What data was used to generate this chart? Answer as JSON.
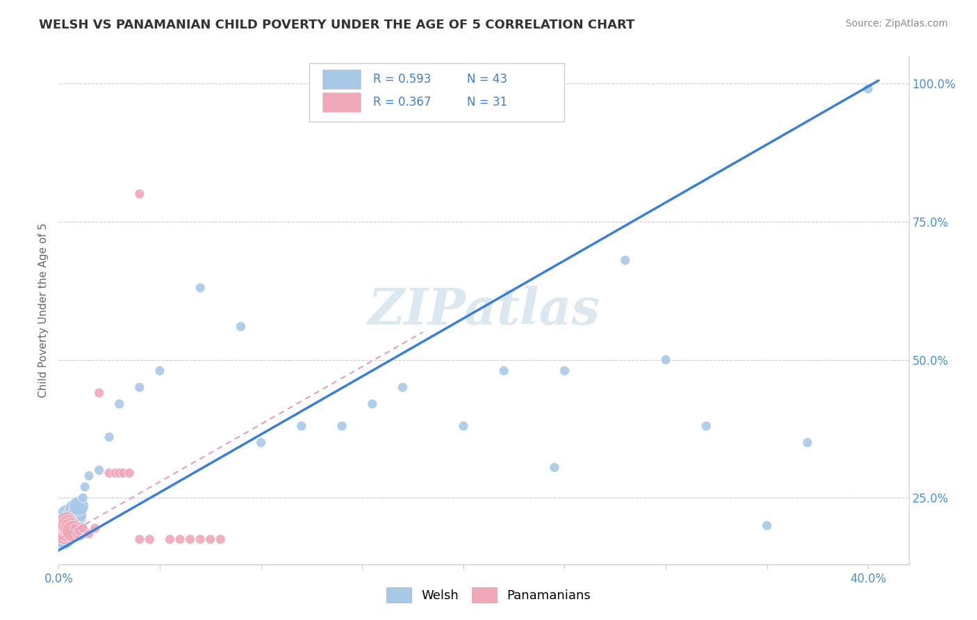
{
  "title": "WELSH VS PANAMANIAN CHILD POVERTY UNDER THE AGE OF 5 CORRELATION CHART",
  "source": "Source: ZipAtlas.com",
  "ylabel": "Child Poverty Under the Age of 5",
  "xlim": [
    0.0,
    0.42
  ],
  "ylim": [
    0.13,
    1.05
  ],
  "xtick_positions": [
    0.0,
    0.05,
    0.1,
    0.15,
    0.2,
    0.25,
    0.3,
    0.35,
    0.4
  ],
  "xticklabels": [
    "0.0%",
    "",
    "",
    "",
    "",
    "",
    "",
    "",
    "40.0%"
  ],
  "yticks_right": [
    0.25,
    0.5,
    0.75,
    1.0
  ],
  "ytick_labels_right": [
    "25.0%",
    "50.0%",
    "75.0%",
    "100.0%"
  ],
  "welsh_R": "0.593",
  "welsh_N": "43",
  "panama_R": "0.367",
  "panama_N": "31",
  "welsh_color": "#a8c8e8",
  "panama_color": "#f0a8b8",
  "welsh_line_color": "#3a7fd5",
  "panama_line_color": "#e8a0b0",
  "watermark_color": "#dce8f0",
  "welsh_x": [
    0.001,
    0.002,
    0.003,
    0.003,
    0.004,
    0.004,
    0.005,
    0.005,
    0.006,
    0.006,
    0.007,
    0.007,
    0.008,
    0.008,
    0.009,
    0.009,
    0.01,
    0.01,
    0.012,
    0.013,
    0.015,
    0.02,
    0.025,
    0.03,
    0.04,
    0.05,
    0.07,
    0.09,
    0.1,
    0.12,
    0.14,
    0.155,
    0.17,
    0.2,
    0.22,
    0.25,
    0.28,
    0.3,
    0.32,
    0.35,
    0.245,
    0.37,
    0.4
  ],
  "welsh_y": [
    0.175,
    0.19,
    0.2,
    0.175,
    0.21,
    0.22,
    0.185,
    0.2,
    0.19,
    0.21,
    0.195,
    0.22,
    0.2,
    0.23,
    0.215,
    0.22,
    0.19,
    0.235,
    0.25,
    0.27,
    0.29,
    0.3,
    0.36,
    0.42,
    0.45,
    0.48,
    0.63,
    0.56,
    0.35,
    0.38,
    0.38,
    0.42,
    0.45,
    0.38,
    0.48,
    0.48,
    0.68,
    0.5,
    0.38,
    0.2,
    0.305,
    0.35,
    0.99
  ],
  "welsh_sizes": [
    400,
    400,
    400,
    400,
    400,
    400,
    400,
    400,
    400,
    400,
    400,
    400,
    400,
    400,
    400,
    400,
    400,
    400,
    100,
    100,
    100,
    100,
    100,
    100,
    100,
    100,
    100,
    100,
    100,
    100,
    100,
    100,
    100,
    100,
    100,
    100,
    100,
    100,
    100,
    100,
    100,
    100,
    100
  ],
  "panama_x": [
    0.001,
    0.002,
    0.003,
    0.003,
    0.004,
    0.004,
    0.005,
    0.005,
    0.006,
    0.007,
    0.008,
    0.009,
    0.01,
    0.012,
    0.015,
    0.018,
    0.02,
    0.025,
    0.028,
    0.03,
    0.032,
    0.035,
    0.04,
    0.045,
    0.055,
    0.06,
    0.065,
    0.07,
    0.075,
    0.08,
    0.04
  ],
  "panama_y": [
    0.195,
    0.19,
    0.195,
    0.185,
    0.205,
    0.19,
    0.195,
    0.2,
    0.195,
    0.19,
    0.195,
    0.185,
    0.19,
    0.195,
    0.185,
    0.195,
    0.44,
    0.295,
    0.295,
    0.295,
    0.295,
    0.295,
    0.175,
    0.175,
    0.175,
    0.175,
    0.175,
    0.175,
    0.175,
    0.175,
    0.8
  ],
  "panama_sizes": [
    500,
    500,
    500,
    500,
    500,
    500,
    500,
    500,
    500,
    500,
    100,
    100,
    100,
    100,
    100,
    100,
    100,
    100,
    100,
    100,
    100,
    100,
    100,
    100,
    100,
    100,
    100,
    100,
    100,
    100,
    100
  ],
  "welsh_line_x": [
    0.0,
    0.405
  ],
  "welsh_line_y": [
    0.155,
    1.005
  ],
  "panama_line_x": [
    0.0,
    0.18
  ],
  "panama_line_y": [
    0.175,
    0.55
  ]
}
